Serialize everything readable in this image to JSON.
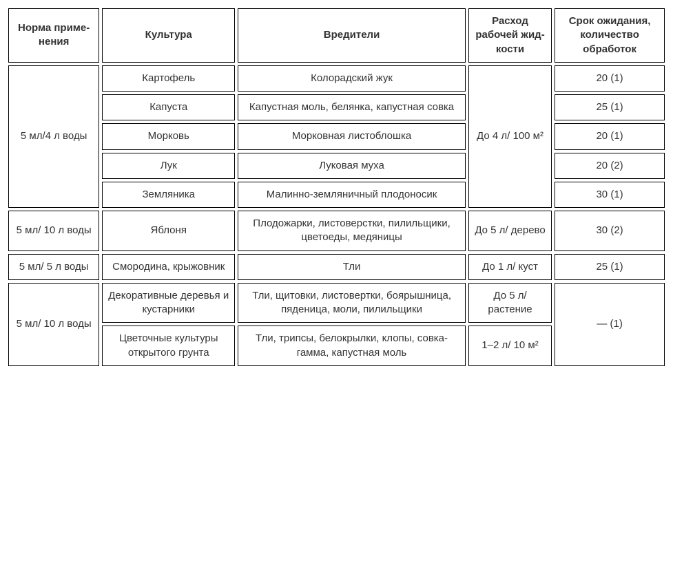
{
  "table": {
    "columns": [
      "Норма приме­нения",
      "Культура",
      "Вредители",
      "Расход рабочей жид­кости",
      "Срок ожидания, количество обработок"
    ],
    "groups": [
      {
        "dose": "5 мл/4 л воды",
        "consumption": "До 4 л/ 100 м²",
        "rows": [
          {
            "crop": "Картофель",
            "pest": "Колорадский жук",
            "wait": "20 (1)"
          },
          {
            "crop": "Капуста",
            "pest": "Капустная моль, белянка, капустная совка",
            "wait": "25 (1)"
          },
          {
            "crop": "Морковь",
            "pest": "Морковная листоблошка",
            "wait": "20 (1)"
          },
          {
            "crop": "Лук",
            "pest": "Луковая муха",
            "wait": "20 (2)"
          },
          {
            "crop": "Земляника",
            "pest": "Малинно-земляничный плодоносик",
            "wait": "30 (1)"
          }
        ]
      },
      {
        "dose": "5 мл/ 10 л воды",
        "rows": [
          {
            "crop": "Яблоня",
            "pest": "Плодожарки, листоверстки, пилильщики, цветоеды, медяницы",
            "consumption": "До 5 л/ дерево",
            "wait": "30 (2)"
          }
        ]
      },
      {
        "dose": "5 мл/ 5 л воды",
        "rows": [
          {
            "crop": "Смородина, крыжовник",
            "pest": "Тли",
            "consumption": "До 1 л/ куст",
            "wait": "25 (1)"
          }
        ]
      },
      {
        "dose": "5 мл/ 10 л воды",
        "wait": "— (1)",
        "rows": [
          {
            "crop": "Декоративные деревья и кустарники",
            "pest": "Тли, щитовки, листовертки, боярышница, пяденица, моли, пилильщики",
            "consumption": "До 5 л/ растение"
          },
          {
            "crop": "Цветочные культуры открытого грунта",
            "pest": "Тли, трипсы, белокрылки, клопы, совка-гамма, капустная моль",
            "consumption": "1–2 л/ 10 м²"
          }
        ]
      }
    ]
  }
}
